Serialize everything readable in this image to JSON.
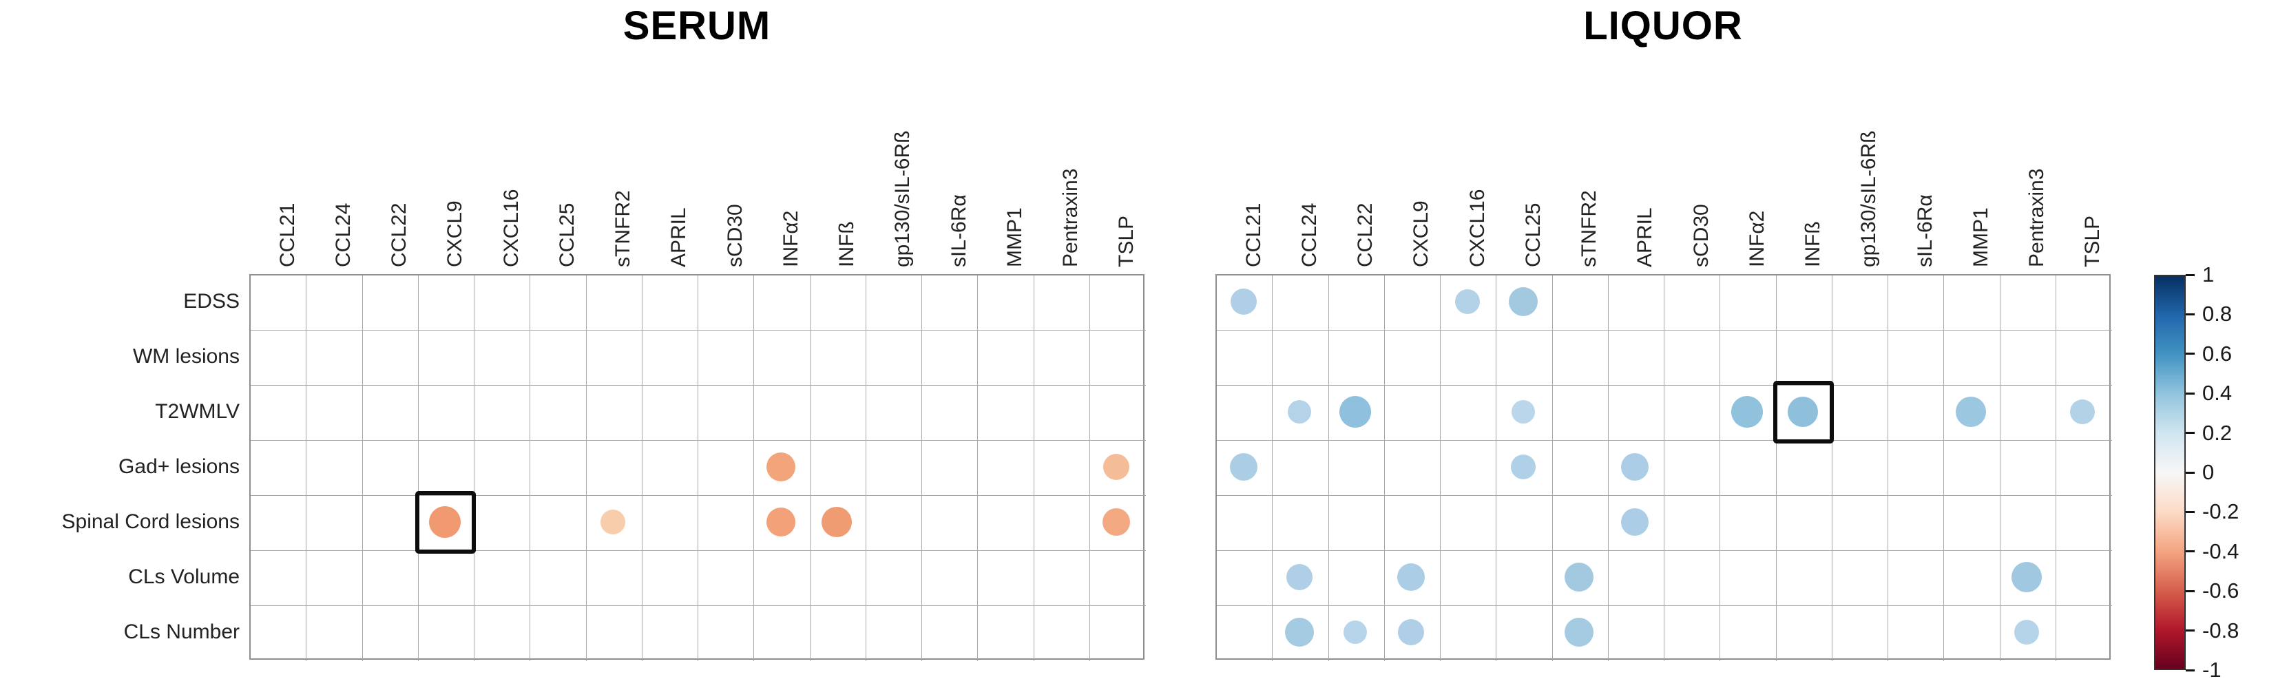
{
  "titles": {
    "serum": "SERUM",
    "liquor": "LIQUOR"
  },
  "rows": [
    "EDSS",
    "WM lesions",
    "T2WMLV",
    "Gad+ lesions",
    "Spinal Cord lesions",
    "CLs Volume",
    "CLs Number"
  ],
  "columns": [
    "CCL21",
    "CCL24",
    "CCL22",
    "CXCL9",
    "CXCL16",
    "CCL25",
    "sTNFR2",
    "APRIL",
    "sCD30",
    "INFα2",
    "INFß",
    "gp130/sIL-6Rß",
    "sIL-6Rα",
    "MMP1",
    "Pentraxin3",
    "TSLP"
  ],
  "colorbar": {
    "ticks": [
      "1",
      "0.8",
      "0.6",
      "0.4",
      "0.2",
      "0",
      "-0.2",
      "-0.4",
      "-0.6",
      "-0.8",
      "-1"
    ],
    "range": [
      -1,
      1
    ],
    "top_color": "#053061",
    "zero_color": "#f7f7f7",
    "bottom_color": "#67001f"
  },
  "chart_data": [
    {
      "type": "scatter",
      "title": "SERUM",
      "x_categories": [
        "CCL21",
        "CCL24",
        "CCL22",
        "CXCL9",
        "CXCL16",
        "CCL25",
        "sTNFR2",
        "APRIL",
        "sCD30",
        "INFα2",
        "INFß",
        "gp130/sIL-6Rß",
        "sIL-6Rα",
        "MMP1",
        "Pentraxin3",
        "TSLP"
      ],
      "y_categories": [
        "EDSS",
        "WM lesions",
        "T2WMLV",
        "Gad+ lesions",
        "Spinal Cord lesions",
        "CLs Volume",
        "CLs Number"
      ],
      "value_meaning": "correlation coefficient r, dot color/size scaled to r",
      "points": [
        {
          "x": "INFα2",
          "y": "Gad+ lesions",
          "r": -0.35,
          "size": 42,
          "color": "#F2A47B",
          "highlighted": false
        },
        {
          "x": "TSLP",
          "y": "Gad+ lesions",
          "r": -0.25,
          "size": 38,
          "color": "#F5BD97",
          "highlighted": false
        },
        {
          "x": "CXCL9",
          "y": "Spinal Cord lesions",
          "r": -0.45,
          "size": 46,
          "color": "#F19970",
          "highlighted": true
        },
        {
          "x": "sTNFR2",
          "y": "Spinal Cord lesions",
          "r": -0.2,
          "size": 36,
          "color": "#F8CDAB",
          "highlighted": false
        },
        {
          "x": "INFα2",
          "y": "Spinal Cord lesions",
          "r": -0.4,
          "size": 42,
          "color": "#F2A178",
          "highlighted": false
        },
        {
          "x": "INFß",
          "y": "Spinal Cord lesions",
          "r": -0.45,
          "size": 44,
          "color": "#F09C72",
          "highlighted": false
        },
        {
          "x": "TSLP",
          "y": "Spinal Cord lesions",
          "r": -0.35,
          "size": 40,
          "color": "#F2A981",
          "highlighted": false
        }
      ]
    },
    {
      "type": "scatter",
      "title": "LIQUOR",
      "x_categories": [
        "CCL21",
        "CCL24",
        "CCL22",
        "CXCL9",
        "CXCL16",
        "CCL25",
        "sTNFR2",
        "APRIL",
        "sCD30",
        "INFα2",
        "INFß",
        "gp130/sIL-6Rß",
        "sIL-6Rα",
        "MMP1",
        "Pentraxin3",
        "TSLP"
      ],
      "y_categories": [
        "EDSS",
        "WM lesions",
        "T2WMLV",
        "Gad+ lesions",
        "Spinal Cord lesions",
        "CLs Volume",
        "CLs Number"
      ],
      "value_meaning": "correlation coefficient r, dot color/size scaled to r",
      "points": [
        {
          "x": "CCL21",
          "y": "EDSS",
          "r": 0.3,
          "size": 38,
          "color": "#AECFE6",
          "highlighted": false
        },
        {
          "x": "CXCL16",
          "y": "EDSS",
          "r": 0.28,
          "size": 36,
          "color": "#B3D2E8",
          "highlighted": false
        },
        {
          "x": "CCL25",
          "y": "EDSS",
          "r": 0.35,
          "size": 42,
          "color": "#A3C9E1",
          "highlighted": false
        },
        {
          "x": "CCL24",
          "y": "T2WMLV",
          "r": 0.25,
          "size": 34,
          "color": "#B4D3E9",
          "highlighted": false
        },
        {
          "x": "CCL22",
          "y": "T2WMLV",
          "r": 0.42,
          "size": 46,
          "color": "#8FC0DD",
          "highlighted": false
        },
        {
          "x": "CCL25",
          "y": "T2WMLV",
          "r": 0.25,
          "size": 34,
          "color": "#B9D6EA",
          "highlighted": false
        },
        {
          "x": "INFα2",
          "y": "T2WMLV",
          "r": 0.42,
          "size": 46,
          "color": "#90C1DD",
          "highlighted": false
        },
        {
          "x": "INFß",
          "y": "T2WMLV",
          "r": 0.4,
          "size": 44,
          "color": "#8EC0DC",
          "highlighted": true
        },
        {
          "x": "MMP1",
          "y": "T2WMLV",
          "r": 0.38,
          "size": 44,
          "color": "#9BC7E1",
          "highlighted": false
        },
        {
          "x": "TSLP",
          "y": "T2WMLV",
          "r": 0.25,
          "size": 36,
          "color": "#B2D2E8",
          "highlighted": false
        },
        {
          "x": "CCL21",
          "y": "Gad+ lesions",
          "r": 0.3,
          "size": 40,
          "color": "#ACCEE5",
          "highlighted": false
        },
        {
          "x": "CCL25",
          "y": "Gad+ lesions",
          "r": 0.28,
          "size": 36,
          "color": "#B0D0E7",
          "highlighted": false
        },
        {
          "x": "APRIL",
          "y": "Gad+ lesions",
          "r": 0.3,
          "size": 40,
          "color": "#ABCDE5",
          "highlighted": false
        },
        {
          "x": "APRIL",
          "y": "Spinal Cord lesions",
          "r": 0.3,
          "size": 40,
          "color": "#ABCDE5",
          "highlighted": false
        },
        {
          "x": "CCL24",
          "y": "CLs Volume",
          "r": 0.3,
          "size": 38,
          "color": "#AECFE6",
          "highlighted": false
        },
        {
          "x": "CXCL9",
          "y": "CLs Volume",
          "r": 0.3,
          "size": 40,
          "color": "#ABCDE5",
          "highlighted": false
        },
        {
          "x": "sTNFR2",
          "y": "CLs Volume",
          "r": 0.35,
          "size": 42,
          "color": "#A3C9E1",
          "highlighted": false
        },
        {
          "x": "Pentraxin3",
          "y": "CLs Volume",
          "r": 0.35,
          "size": 44,
          "color": "#A0C8E0",
          "highlighted": false
        },
        {
          "x": "CCL24",
          "y": "CLs Number",
          "r": 0.35,
          "size": 42,
          "color": "#A5CBE3",
          "highlighted": false
        },
        {
          "x": "CCL22",
          "y": "CLs Number",
          "r": 0.25,
          "size": 34,
          "color": "#B7D5EA",
          "highlighted": false
        },
        {
          "x": "CXCL9",
          "y": "CLs Number",
          "r": 0.3,
          "size": 38,
          "color": "#AECFE6",
          "highlighted": false
        },
        {
          "x": "sTNFR2",
          "y": "CLs Number",
          "r": 0.35,
          "size": 42,
          "color": "#A5CBE3",
          "highlighted": false
        },
        {
          "x": "Pentraxin3",
          "y": "CLs Number",
          "r": 0.25,
          "size": 36,
          "color": "#B5D4E9",
          "highlighted": false
        }
      ]
    }
  ]
}
